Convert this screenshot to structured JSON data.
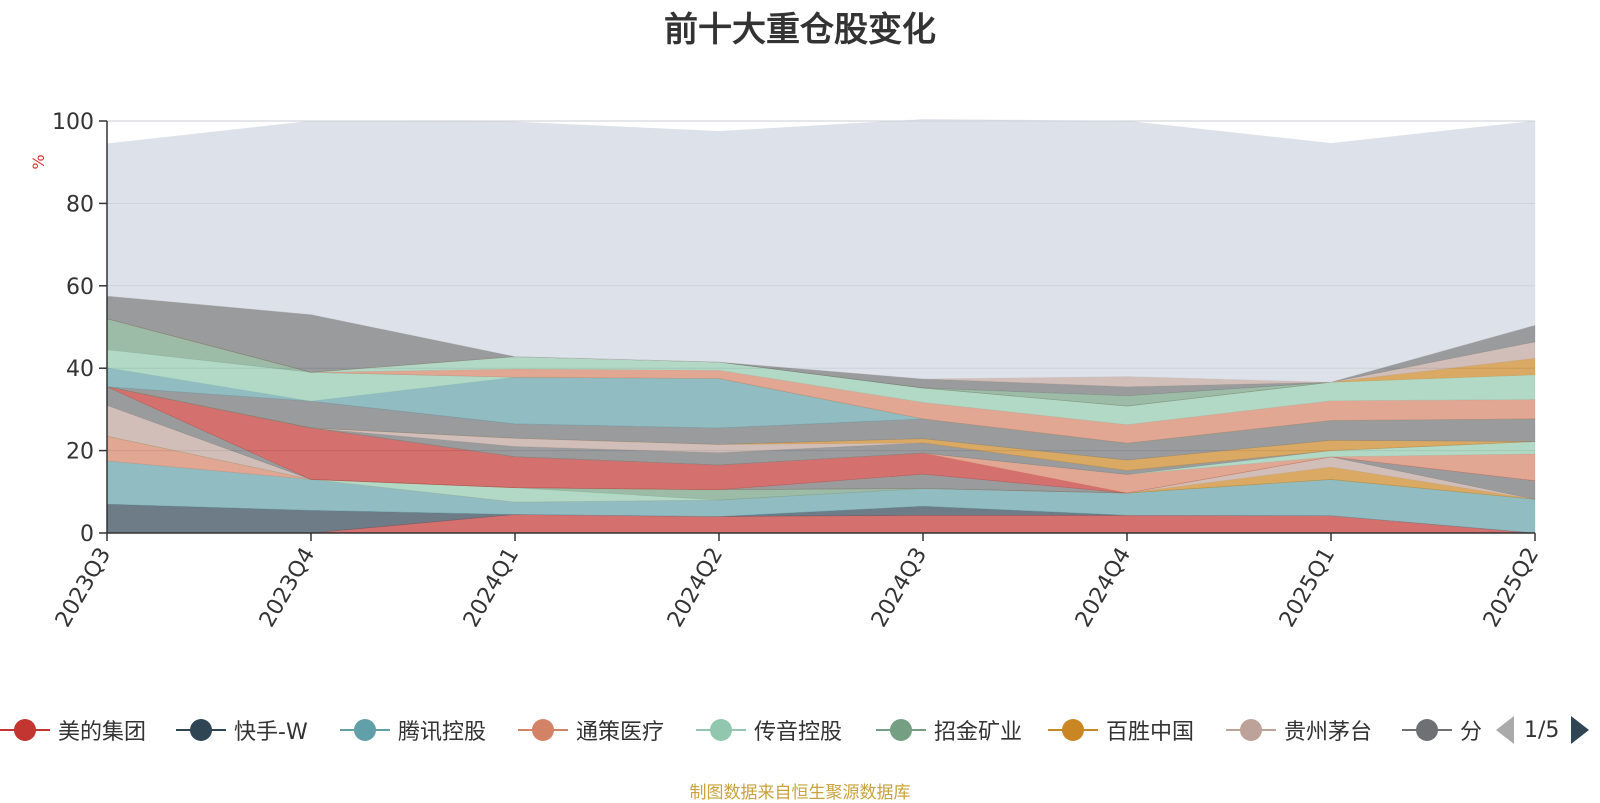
{
  "chart_data": {
    "type": "area",
    "title": "前十大重仓股变化",
    "ylabel": "%",
    "ylim": [
      0,
      100
    ],
    "yticks": [
      0,
      20,
      40,
      60,
      80,
      100
    ],
    "categories": [
      "2023Q3",
      "2023Q4",
      "2024Q1",
      "2024Q2",
      "2024Q3",
      "2024Q4",
      "2025Q1",
      "2025Q2"
    ],
    "stacked": true,
    "series": [
      {
        "name": "美的集团",
        "color": "#c23531",
        "values": [
          0,
          0,
          4.5,
          4,
          4.3,
          4.3,
          4.2,
          0
        ]
      },
      {
        "name": "快手-W",
        "color": "#2f4554",
        "values": [
          7,
          5.5,
          0,
          0,
          2.2,
          0,
          0,
          0
        ]
      },
      {
        "name": "腾讯控股",
        "color": "#61a0a8",
        "values": [
          10.5,
          7.5,
          3,
          4,
          4.3,
          5.4,
          8.8,
          8.2
        ]
      },
      {
        "name": "通策医疗",
        "color": "#d48265",
        "values": [
          6,
          0,
          0,
          0,
          0,
          0,
          0,
          0
        ]
      },
      {
        "name": "传音控股",
        "color": "#91c7ae",
        "values": [
          0,
          0,
          3.5,
          0,
          0,
          0,
          0,
          0
        ]
      },
      {
        "name": "招金矿业",
        "color": "#749f83",
        "values": [
          0,
          0,
          0,
          2.5,
          0,
          0,
          0,
          0
        ]
      },
      {
        "name": "百胜中国",
        "color": "#ca8622",
        "values": [
          0,
          0,
          0,
          0,
          0,
          0,
          3,
          0
        ]
      },
      {
        "name": "贵州茅台",
        "color": "#bda29a",
        "values": [
          7.5,
          0,
          0,
          0,
          0,
          0,
          2.5,
          0
        ]
      },
      {
        "name": "分",
        "color": "#6e7074",
        "values": [
          4.5,
          0,
          0,
          0,
          3.5,
          0,
          0,
          4.5
        ]
      },
      {
        "name": "",
        "color": "#c23531",
        "values": [
          0,
          12.5,
          7.5,
          6,
          5.1,
          0,
          0,
          0
        ]
      },
      {
        "name": "",
        "color": "#d48265",
        "values": [
          0,
          0,
          0,
          0,
          0,
          4.5,
          0,
          6.5
        ]
      },
      {
        "name": "",
        "color": "#91c7ae",
        "values": [
          0,
          0,
          0,
          0,
          0,
          0,
          1.5,
          3
        ]
      },
      {
        "name": "",
        "color": "#6e7074",
        "values": [
          0,
          0,
          2.5,
          3,
          2.5,
          1,
          0,
          0
        ]
      },
      {
        "name": "",
        "color": "#bda29a",
        "values": [
          0,
          0,
          2,
          2,
          0,
          0,
          0,
          0
        ]
      },
      {
        "name": "",
        "color": "#ca8622",
        "values": [
          0,
          0,
          0,
          0,
          1,
          2.5,
          2.5,
          0
        ]
      },
      {
        "name": "",
        "color": "#6e7074",
        "values": [
          0,
          6.5,
          3.5,
          4,
          4.8,
          4.1,
          4.8,
          5.5
        ]
      },
      {
        "name": "",
        "color": "#61a0a8",
        "values": [
          4.6,
          0,
          11.3,
          12,
          0,
          0,
          0,
          0
        ]
      },
      {
        "name": "",
        "color": "#91c7ae",
        "values": [
          4.4,
          7,
          0,
          0,
          0,
          0,
          0,
          0
        ]
      },
      {
        "name": "",
        "color": "#749f83",
        "values": [
          7.5,
          0,
          0,
          0,
          0,
          0,
          0,
          0
        ]
      },
      {
        "name": "",
        "color": "#d48265",
        "values": [
          0,
          0,
          2,
          2,
          4,
          4.5,
          4.8,
          4.7
        ]
      },
      {
        "name": "",
        "color": "#91c7ae",
        "values": [
          0,
          0,
          3,
          2,
          3.5,
          4.5,
          4.5,
          6
        ]
      },
      {
        "name": "",
        "color": "#ca8622",
        "values": [
          0,
          0,
          0,
          0,
          0,
          0,
          0,
          4
        ]
      },
      {
        "name": "",
        "color": "#bda29a",
        "values": [
          0,
          0,
          0,
          0,
          0,
          0,
          0,
          4
        ]
      },
      {
        "name": "",
        "color": "#6e7074",
        "values": [
          5.5,
          14,
          0,
          0,
          0,
          0,
          0,
          4
        ]
      },
      {
        "name": "",
        "color": "#749f83",
        "values": [
          0,
          0,
          0,
          0,
          0,
          2.5,
          0,
          0
        ]
      },
      {
        "name": "",
        "color": "#6e7074",
        "values": [
          0,
          0,
          0,
          0,
          2.2,
          2.2,
          0,
          0
        ]
      },
      {
        "name": "",
        "color": "#bda29a",
        "values": [
          0,
          0,
          0,
          0,
          0,
          2.5,
          0,
          0
        ]
      },
      {
        "name": "",
        "color": "#ced4df",
        "values": [
          37,
          47,
          57,
          56,
          63,
          62,
          58,
          49.6
        ]
      }
    ],
    "grid": true,
    "legend_position": "bottom",
    "legend_page": "1/5"
  },
  "legend": {
    "items": [
      {
        "label": "美的集团",
        "color": "#c23531"
      },
      {
        "label": "快手-W",
        "color": "#2f4554"
      },
      {
        "label": "腾讯控股",
        "color": "#61a0a8"
      },
      {
        "label": "通策医疗",
        "color": "#d48265"
      },
      {
        "label": "传音控股",
        "color": "#91c7ae"
      },
      {
        "label": "招金矿业",
        "color": "#749f83"
      },
      {
        "label": "百胜中国",
        "color": "#ca8622"
      },
      {
        "label": "贵州茅台",
        "color": "#bda29a"
      },
      {
        "label": "分",
        "color": "#6e7074"
      }
    ],
    "page": "1/5"
  },
  "source_note": "制图数据来自恒生聚源数据库"
}
